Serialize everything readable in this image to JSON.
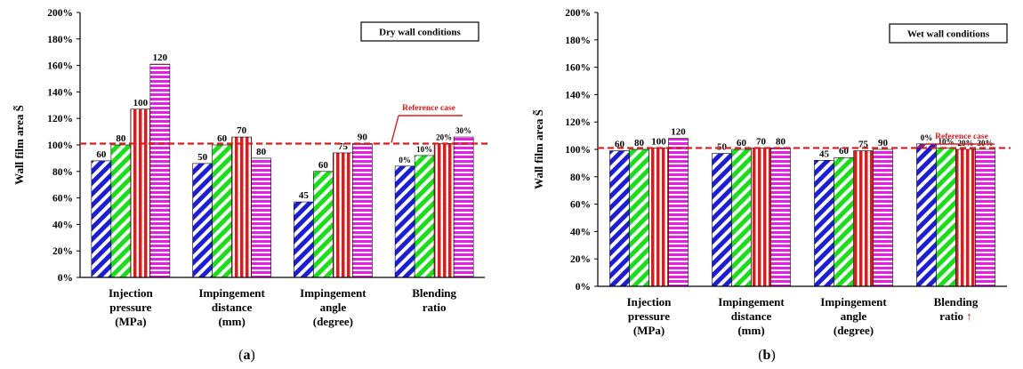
{
  "colors": {
    "series": [
      "#1c1cdb",
      "#16e016",
      "#e01a1a",
      "#e61ee6"
    ],
    "reference": "#e01a1a",
    "axis": "#000000"
  },
  "panels": [
    {
      "panel_label": "(a)",
      "panel_letter": "a",
      "box_label": "Dry wall conditions",
      "reference_label": "Reference case",
      "y_axis_label": "Wall film area S̃",
      "categories": [
        "Injection\npressure\n(MPa)",
        "Impingement\ndistance\n(mm)",
        "Impingement\nangle\n(degree)",
        "Blending\nratio"
      ],
      "y_tick_labels": [
        "0%",
        "20%",
        "40%",
        "60%",
        "80%",
        "100%",
        "120%",
        "140%",
        "160%",
        "180%",
        "200%"
      ]
    },
    {
      "panel_label": "(b)",
      "panel_letter": "b",
      "box_label": "Wet wall conditions",
      "reference_label": "Reference case",
      "y_axis_label": "Wall film area S̃",
      "categories": [
        "Injection\npressure\n(MPa)",
        "Impingement\ndistance\n(mm)",
        "Impingement\nangle\n(degree)",
        "Blending\nratio ↑"
      ],
      "y_tick_labels": [
        "0%",
        "20%",
        "40%",
        "60%",
        "80%",
        "100%",
        "120%",
        "140%",
        "160%",
        "180%",
        "200%"
      ]
    }
  ],
  "chart_data": [
    {
      "type": "bar",
      "title": "Dry wall conditions",
      "ylabel": "Wall film area S̃",
      "ylim": [
        0,
        200
      ],
      "y_unit": "%",
      "reference_line": 101,
      "groups": [
        {
          "category": "Injection pressure (MPa)",
          "labels": [
            "60",
            "80",
            "100",
            "120"
          ],
          "values": [
            88,
            100,
            127,
            161
          ]
        },
        {
          "category": "Impingement distance (mm)",
          "labels": [
            "50",
            "60",
            "70",
            "80"
          ],
          "values": [
            86,
            100,
            106,
            90
          ]
        },
        {
          "category": "Impingement angle (degree)",
          "labels": [
            "45",
            "60",
            "75",
            "90"
          ],
          "values": [
            57,
            80,
            94,
            101
          ]
        },
        {
          "category": "Blending ratio",
          "labels": [
            "0%",
            "10%",
            "20%",
            "30%"
          ],
          "values": [
            84,
            92,
            101,
            106
          ]
        }
      ]
    },
    {
      "type": "bar",
      "title": "Wet wall conditions",
      "ylabel": "Wall film area S̃",
      "ylim": [
        0,
        200
      ],
      "y_unit": "%",
      "reference_line": 101,
      "groups": [
        {
          "category": "Injection pressure (MPa)",
          "labels": [
            "60",
            "80",
            "100",
            "120"
          ],
          "values": [
            99,
            100,
            101,
            108
          ]
        },
        {
          "category": "Impingement distance (mm)",
          "labels": [
            "50",
            "60",
            "70",
            "80"
          ],
          "values": [
            97,
            100,
            101,
            101
          ]
        },
        {
          "category": "Impingement angle (degree)",
          "labels": [
            "45",
            "60",
            "75",
            "90"
          ],
          "values": [
            92,
            94,
            99,
            100
          ]
        },
        {
          "category": "Blending ratio",
          "labels": [
            "0%",
            "10%",
            "20%",
            "30%"
          ],
          "values": [
            104,
            101,
            100,
            100
          ]
        }
      ]
    }
  ]
}
